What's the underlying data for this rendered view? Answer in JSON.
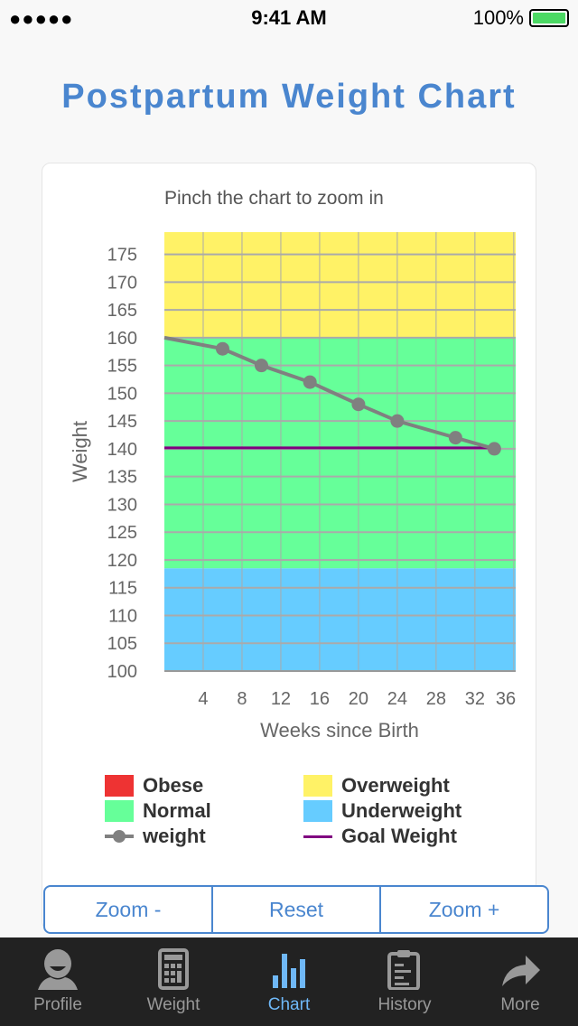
{
  "status": {
    "signal": "●●●●●",
    "time": "9:41 AM",
    "battery": "100%"
  },
  "title": "Postpartum Weight Chart",
  "hint": "Pinch the chart to zoom in",
  "chart_data": {
    "type": "line",
    "xlabel": "Weeks since Birth",
    "ylabel": "Weight",
    "xlim": [
      0,
      36.2
    ],
    "ylim": [
      100,
      179
    ],
    "xticks": [
      4,
      8,
      12,
      16,
      20,
      24,
      28,
      32,
      36
    ],
    "yticks": [
      100,
      105,
      110,
      115,
      120,
      125,
      130,
      135,
      140,
      145,
      150,
      155,
      160,
      165,
      170,
      175
    ],
    "bands": [
      {
        "name": "Underweight",
        "from": 100,
        "to": 118.5,
        "color": "#66ccff"
      },
      {
        "name": "Normal",
        "from": 118.5,
        "to": 160,
        "color": "#66ff99"
      },
      {
        "name": "Overweight",
        "from": 160,
        "to": 179,
        "color": "#fff266"
      }
    ],
    "series": [
      {
        "name": "weight",
        "x": [
          0,
          6,
          10,
          15,
          20,
          24,
          30,
          34
        ],
        "y": [
          160,
          158,
          155,
          152,
          148,
          145,
          142,
          140
        ],
        "markers": [
          false,
          true,
          true,
          true,
          true,
          true,
          true,
          true
        ],
        "color": "#808080"
      },
      {
        "name": "Goal Weight",
        "x": [
          0,
          34
        ],
        "y": [
          140,
          140
        ],
        "color": "#800080"
      }
    ],
    "legend": [
      {
        "label": "Obese",
        "color": "#ee3333",
        "kind": "box"
      },
      {
        "label": "Overweight",
        "color": "#fff266",
        "kind": "box"
      },
      {
        "label": "Normal",
        "color": "#66ff99",
        "kind": "box"
      },
      {
        "label": "Underweight",
        "color": "#66ccff",
        "kind": "box"
      },
      {
        "label": "weight",
        "color": "#808080",
        "kind": "marker"
      },
      {
        "label": "Goal Weight",
        "color": "#800080",
        "kind": "line"
      }
    ]
  },
  "buttons": {
    "zoom_out": "Zoom -",
    "reset": "Reset",
    "zoom_in": "Zoom +"
  },
  "tabs": [
    {
      "label": "Profile"
    },
    {
      "label": "Weight"
    },
    {
      "label": "Chart"
    },
    {
      "label": "History"
    },
    {
      "label": "More"
    }
  ]
}
